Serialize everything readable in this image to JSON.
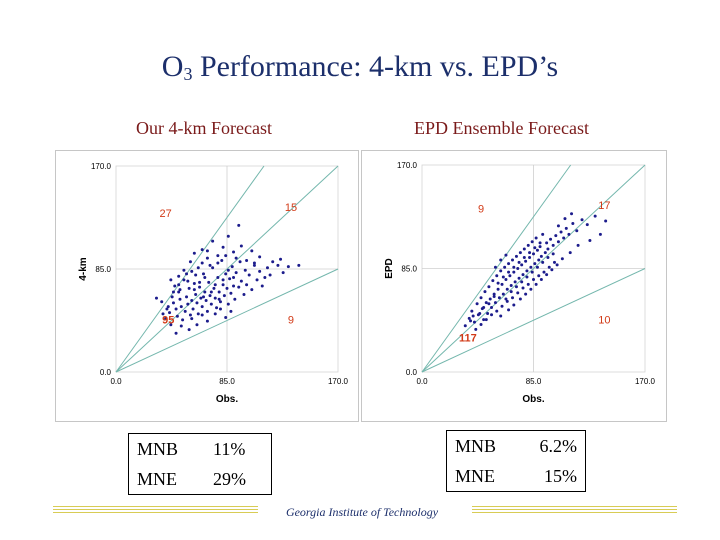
{
  "title": {
    "main": "O",
    "subscript": "3",
    "rest": " Performance: 4-km vs. EPD’s"
  },
  "footer": "Georgia Institute of Technology",
  "chart_data": [
    {
      "type": "scatter",
      "title": "Our 4-km Forecast",
      "xlabel": "Obs.",
      "ylabel": "4-km",
      "xlim": [
        0,
        170
      ],
      "ylim": [
        0,
        170
      ],
      "xticks": [
        "0.0",
        "85.0",
        "170.0"
      ],
      "yticks": [
        "0.0",
        "85.0",
        "170.0"
      ],
      "reference_lines": [
        {
          "slope": 1.5,
          "label": "upper bound"
        },
        {
          "slope": 1.0,
          "label": "1:1"
        },
        {
          "slope": 0.5,
          "label": "lower bound"
        }
      ],
      "region_counts": [
        {
          "label": "27",
          "x": 38,
          "y": 128
        },
        {
          "label": "15",
          "x": 134,
          "y": 133
        },
        {
          "label": "95",
          "x": 40,
          "y": 40
        },
        {
          "label": "9",
          "x": 134,
          "y": 40
        }
      ],
      "points": [
        [
          31,
          61
        ],
        [
          36,
          48
        ],
        [
          35,
          58
        ],
        [
          38,
          44
        ],
        [
          40,
          54
        ],
        [
          41,
          49
        ],
        [
          43,
          62
        ],
        [
          42,
          39
        ],
        [
          44,
          57
        ],
        [
          46,
          52
        ],
        [
          45,
          71
        ],
        [
          47,
          46
        ],
        [
          48,
          66
        ],
        [
          49,
          60
        ],
        [
          50,
          54
        ],
        [
          51,
          43
        ],
        [
          52,
          76
        ],
        [
          53,
          50
        ],
        [
          54,
          62
        ],
        [
          55,
          56
        ],
        [
          56,
          69
        ],
        [
          57,
          47
        ],
        [
          58,
          59
        ],
        [
          59,
          52
        ],
        [
          60,
          73
        ],
        [
          61,
          64
        ],
        [
          62,
          57
        ],
        [
          63,
          48
        ],
        [
          64,
          70
        ],
        [
          65,
          61
        ],
        [
          66,
          54
        ],
        [
          67,
          81
        ],
        [
          68,
          66
        ],
        [
          69,
          59
        ],
        [
          70,
          50
        ],
        [
          71,
          74
        ],
        [
          72,
          63
        ],
        [
          73,
          56
        ],
        [
          74,
          86
        ],
        [
          75,
          69
        ],
        [
          76,
          61
        ],
        [
          77,
          53
        ],
        [
          78,
          78
        ],
        [
          79,
          66
        ],
        [
          80,
          58
        ],
        [
          81,
          92
        ],
        [
          82,
          72
        ],
        [
          83,
          63
        ],
        [
          84,
          81
        ],
        [
          85,
          69
        ],
        [
          86,
          56
        ],
        [
          87,
          77
        ],
        [
          88,
          65
        ],
        [
          89,
          87
        ],
        [
          90,
          71
        ],
        [
          91,
          60
        ],
        [
          92,
          82
        ],
        [
          94,
          70
        ],
        [
          95,
          91
        ],
        [
          96,
          75
        ],
        [
          98,
          64
        ],
        [
          99,
          84
        ],
        [
          100,
          72
        ],
        [
          102,
          80
        ],
        [
          104,
          68
        ],
        [
          106,
          88
        ],
        [
          108,
          76
        ],
        [
          110,
          83
        ],
        [
          112,
          71
        ],
        [
          116,
          86
        ],
        [
          118,
          80
        ],
        [
          124,
          88
        ],
        [
          128,
          82
        ],
        [
          132,
          87
        ],
        [
          140,
          88
        ],
        [
          54,
          81
        ],
        [
          57,
          91
        ],
        [
          60,
          98
        ],
        [
          63,
          86
        ],
        [
          66,
          101
        ],
        [
          70,
          94
        ],
        [
          74,
          108
        ],
        [
          78,
          96
        ],
        [
          82,
          103
        ],
        [
          86,
          112
        ],
        [
          90,
          99
        ],
        [
          94,
          121
        ],
        [
          48,
          72
        ],
        [
          44,
          66
        ],
        [
          39,
          52
        ],
        [
          58,
          44
        ],
        [
          62,
          39
        ],
        [
          66,
          47
        ],
        [
          70,
          42
        ],
        [
          76,
          48
        ],
        [
          80,
          52
        ],
        [
          84,
          45
        ],
        [
          88,
          50
        ],
        [
          56,
          35
        ],
        [
          50,
          38
        ],
        [
          46,
          32
        ],
        [
          72,
          88
        ],
        [
          68,
          78
        ],
        [
          64,
          74
        ],
        [
          60,
          68
        ],
        [
          92,
          94
        ],
        [
          96,
          104
        ],
        [
          100,
          92
        ],
        [
          104,
          100
        ],
        [
          52,
          84
        ],
        [
          48,
          79
        ],
        [
          42,
          76
        ],
        [
          58,
          83
        ],
        [
          76,
          72
        ],
        [
          82,
          76
        ],
        [
          86,
          84
        ],
        [
          90,
          78
        ],
        [
          106,
          90
        ],
        [
          110,
          95
        ],
        [
          114,
          78
        ],
        [
          120,
          91
        ],
        [
          126,
          93
        ],
        [
          78,
          90
        ],
        [
          84,
          96
        ],
        [
          70,
          100
        ],
        [
          66,
          90
        ],
        [
          73,
          66
        ],
        [
          79,
          60
        ],
        [
          67,
          62
        ],
        [
          61,
          80
        ],
        [
          55,
          75
        ],
        [
          49,
          68
        ]
      ]
    },
    {
      "type": "scatter",
      "title": "EPD Ensemble Forecast",
      "xlabel": "Obs.",
      "ylabel": "EPD",
      "xlim": [
        0,
        170
      ],
      "ylim": [
        0,
        170
      ],
      "xticks": [
        "0.0",
        "85.0",
        "170.0"
      ],
      "yticks": [
        "0.0",
        "85.0",
        "170.0"
      ],
      "reference_lines": [
        {
          "slope": 1.5,
          "label": "upper bound"
        },
        {
          "slope": 1.0,
          "label": "1:1"
        },
        {
          "slope": 0.5,
          "label": "lower bound"
        }
      ],
      "region_counts": [
        {
          "label": "9",
          "x": 45,
          "y": 131
        },
        {
          "label": "17",
          "x": 139,
          "y": 134
        },
        {
          "label": "117",
          "x": 35,
          "y": 25
        },
        {
          "label": "10",
          "x": 139,
          "y": 40
        }
      ],
      "points": [
        [
          33,
          38
        ],
        [
          36,
          44
        ],
        [
          38,
          50
        ],
        [
          40,
          41
        ],
        [
          42,
          56
        ],
        [
          43,
          47
        ],
        [
          45,
          61
        ],
        [
          46,
          52
        ],
        [
          47,
          43
        ],
        [
          48,
          66
        ],
        [
          49,
          57
        ],
        [
          50,
          48
        ],
        [
          51,
          70
        ],
        [
          52,
          60
        ],
        [
          53,
          53
        ],
        [
          54,
          75
        ],
        [
          55,
          64
        ],
        [
          56,
          57
        ],
        [
          57,
          79
        ],
        [
          58,
          68
        ],
        [
          59,
          61
        ],
        [
          60,
          83
        ],
        [
          61,
          72
        ],
        [
          62,
          64
        ],
        [
          63,
          86
        ],
        [
          64,
          76
        ],
        [
          65,
          68
        ],
        [
          66,
          89
        ],
        [
          67,
          79
        ],
        [
          68,
          71
        ],
        [
          69,
          92
        ],
        [
          70,
          82
        ],
        [
          71,
          74
        ],
        [
          72,
          95
        ],
        [
          73,
          85
        ],
        [
          74,
          77
        ],
        [
          75,
          98
        ],
        [
          76,
          88
        ],
        [
          77,
          80
        ],
        [
          78,
          101
        ],
        [
          79,
          91
        ],
        [
          80,
          83
        ],
        [
          81,
          104
        ],
        [
          82,
          94
        ],
        [
          83,
          86
        ],
        [
          84,
          107
        ],
        [
          85,
          97
        ],
        [
          86,
          89
        ],
        [
          87,
          110
        ],
        [
          88,
          100
        ],
        [
          89,
          92
        ],
        [
          90,
          103
        ],
        [
          91,
          95
        ],
        [
          92,
          113
        ],
        [
          94,
          98
        ],
        [
          95,
          106
        ],
        [
          96,
          101
        ],
        [
          98,
          109
        ],
        [
          100,
          104
        ],
        [
          102,
          112
        ],
        [
          104,
          107
        ],
        [
          106,
          115
        ],
        [
          108,
          110
        ],
        [
          110,
          118
        ],
        [
          112,
          113
        ],
        [
          115,
          122
        ],
        [
          118,
          116
        ],
        [
          122,
          125
        ],
        [
          126,
          121
        ],
        [
          132,
          128
        ],
        [
          136,
          113
        ],
        [
          140,
          124
        ],
        [
          128,
          108
        ],
        [
          119,
          104
        ],
        [
          113,
          98
        ],
        [
          107,
          93
        ],
        [
          101,
          90
        ],
        [
          97,
          86
        ],
        [
          93,
          82
        ],
        [
          89,
          79
        ],
        [
          85,
          76
        ],
        [
          81,
          72
        ],
        [
          77,
          69
        ],
        [
          73,
          65
        ],
        [
          69,
          61
        ],
        [
          65,
          58
        ],
        [
          61,
          54
        ],
        [
          57,
          50
        ],
        [
          53,
          47
        ],
        [
          49,
          43
        ],
        [
          45,
          39
        ],
        [
          41,
          35
        ],
        [
          58,
          73
        ],
        [
          62,
          78
        ],
        [
          66,
          82
        ],
        [
          70,
          86
        ],
        [
          74,
          90
        ],
        [
          78,
          94
        ],
        [
          82,
          98
        ],
        [
          86,
          102
        ],
        [
          90,
          106
        ],
        [
          64,
          60
        ],
        [
          68,
          66
        ],
        [
          72,
          70
        ],
        [
          76,
          74
        ],
        [
          80,
          78
        ],
        [
          84,
          82
        ],
        [
          88,
          86
        ],
        [
          92,
          90
        ],
        [
          96,
          94
        ],
        [
          100,
          97
        ],
        [
          55,
          62
        ],
        [
          51,
          56
        ],
        [
          47,
          53
        ],
        [
          44,
          48
        ],
        [
          39,
          46
        ],
        [
          37,
          42
        ],
        [
          60,
          46
        ],
        [
          66,
          51
        ],
        [
          70,
          55
        ],
        [
          75,
          60
        ],
        [
          79,
          64
        ],
        [
          83,
          68
        ],
        [
          87,
          72
        ],
        [
          91,
          76
        ],
        [
          95,
          80
        ],
        [
          99,
          84
        ],
        [
          103,
          88
        ],
        [
          56,
          86
        ],
        [
          60,
          92
        ],
        [
          64,
          96
        ],
        [
          104,
          120
        ],
        [
          109,
          126
        ],
        [
          114,
          130
        ]
      ]
    }
  ],
  "stats": [
    {
      "rows": [
        {
          "metric": "MNB",
          "value": "11%"
        },
        {
          "metric": "MNE",
          "value": "29%"
        }
      ]
    },
    {
      "rows": [
        {
          "metric": "MNB",
          "value": "6.2%"
        },
        {
          "metric": "MNE",
          "value": "15%"
        }
      ]
    }
  ]
}
